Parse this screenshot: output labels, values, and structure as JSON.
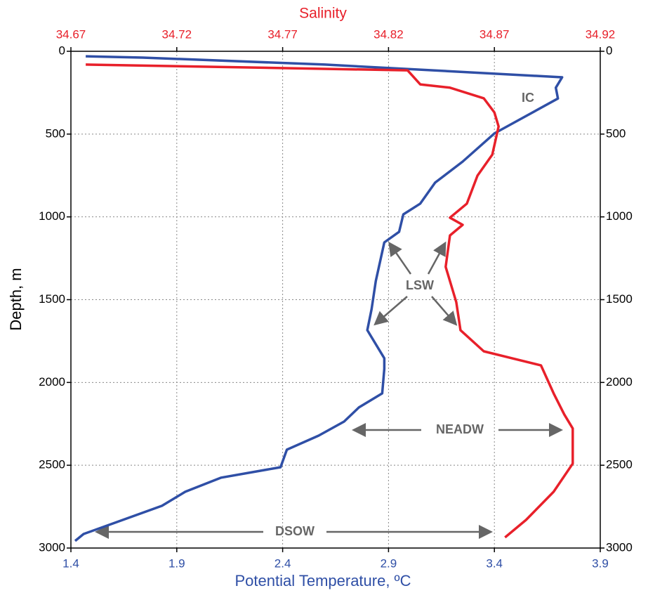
{
  "chart_data": {
    "type": "profile",
    "xlabel": "Potential Temperature, ºC",
    "x2label": "Salinity",
    "ylabel": "Depth, m",
    "xlim": [
      1.4,
      3.9
    ],
    "xticks": [
      1.4,
      1.9,
      2.4,
      2.9,
      3.4,
      3.9
    ],
    "x2lim": [
      34.67,
      34.92
    ],
    "x2ticks": [
      34.67,
      34.72,
      34.77,
      34.82,
      34.87,
      34.92
    ],
    "ylim": [
      0,
      3000
    ],
    "yticks": [
      0,
      500,
      1000,
      1500,
      2000,
      2500,
      3000
    ],
    "grid": true,
    "series": [
      {
        "color": "#2f4fa6",
        "axis": "x",
        "depth": [
          30,
          38,
          80,
          157,
          220,
          285,
          433,
          496,
          666,
          793,
          920,
          985,
          1090,
          1154,
          1387,
          1557,
          1684,
          1727,
          1854,
          1918,
          2066,
          2151,
          2236,
          2321,
          2406,
          2512,
          2575,
          2660,
          2745,
          2851,
          2915,
          2957
        ],
        "values": [
          1.47,
          1.74,
          2.6,
          3.72,
          3.69,
          3.7,
          3.49,
          3.4,
          3.25,
          3.12,
          3.05,
          2.97,
          2.95,
          2.88,
          2.84,
          2.82,
          2.8,
          2.82,
          2.88,
          2.88,
          2.87,
          2.76,
          2.69,
          2.57,
          2.42,
          2.39,
          2.11,
          1.94,
          1.83,
          1.6,
          1.46,
          1.42
        ]
      },
      {
        "color": "#e8202a",
        "axis": "x2",
        "depth": [
          80,
          115,
          200,
          220,
          284,
          369,
          454,
          624,
          751,
          920,
          1005,
          1048,
          1112,
          1302,
          1515,
          1684,
          1812,
          1897,
          2066,
          2193,
          2278,
          2490,
          2660,
          2830,
          2936
        ],
        "values": [
          34.677,
          34.829,
          34.835,
          34.849,
          34.865,
          34.87,
          34.872,
          34.869,
          34.862,
          34.857,
          34.849,
          34.855,
          34.849,
          34.847,
          34.852,
          34.854,
          34.865,
          34.892,
          34.898,
          34.903,
          34.907,
          34.907,
          34.898,
          34.885,
          34.875
        ]
      }
    ],
    "annotations": [
      "IC",
      "LSW",
      "NEADW",
      "DSOW"
    ]
  }
}
